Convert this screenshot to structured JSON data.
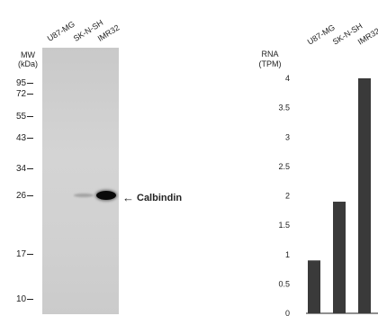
{
  "western_blot": {
    "mw_label": "MW",
    "mw_unit": "(kDa)",
    "lanes": [
      "U87-MG",
      "SK-N-SH",
      "IMR32"
    ],
    "markers": [
      "95",
      "72",
      "55",
      "43",
      "34",
      "26",
      "17",
      "10"
    ],
    "band_label": "Calbindin",
    "band_arrow": "←"
  },
  "chart_data": {
    "type": "bar",
    "categories": [
      "U87-MG",
      "SK-N-SH",
      "IMR32"
    ],
    "values": [
      0.9,
      1.9,
      4.0
    ],
    "ylabel": "RNA",
    "ylabel_unit": "(TPM)",
    "ylim": [
      0,
      4.2
    ],
    "yticks": [
      "0",
      "0.5",
      "1",
      "1.5",
      "2",
      "2.5",
      "3",
      "3.5",
      "4"
    ],
    "bar_color": "#3a3a3a",
    "grid": false
  }
}
